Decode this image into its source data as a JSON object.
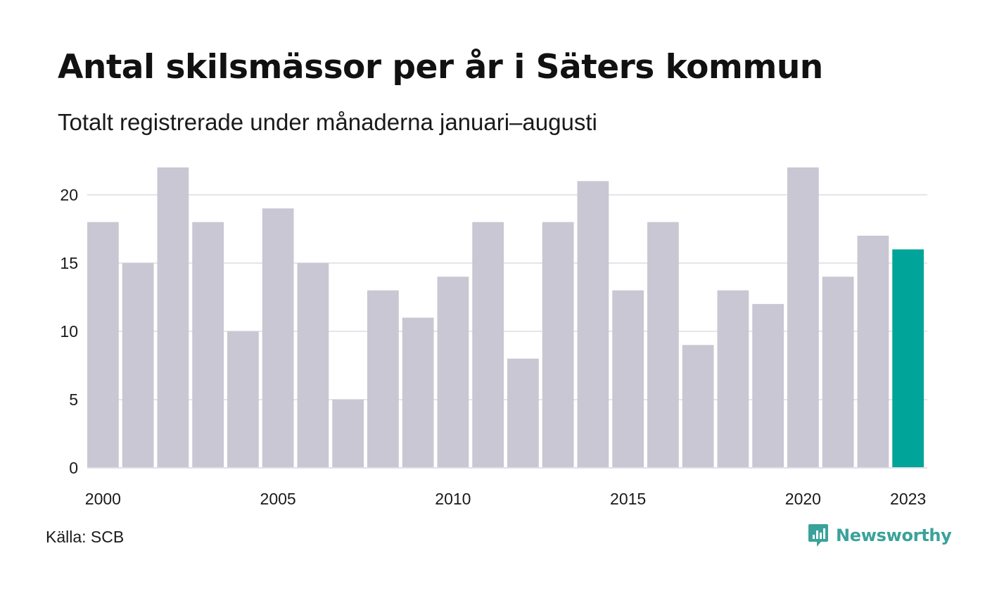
{
  "header": {
    "title": "Antal skilsmässor per år i Säters kommun",
    "subtitle": "Totalt registrerade under månaderna januari–augusti"
  },
  "footer": {
    "source": "Källa: SCB",
    "brand": "Newsworthy"
  },
  "colors": {
    "bar": "#c8c7d3",
    "highlight": "#00a499",
    "grid": "#e5e5ea",
    "brand": "#3aa29a"
  },
  "chart_data": {
    "type": "bar",
    "categories": [
      "2000",
      "2001",
      "2002",
      "2003",
      "2004",
      "2005",
      "2006",
      "2007",
      "2008",
      "2009",
      "2010",
      "2011",
      "2012",
      "2013",
      "2014",
      "2015",
      "2016",
      "2017",
      "2018",
      "2019",
      "2020",
      "2021",
      "2022",
      "2023"
    ],
    "values": [
      18,
      15,
      22,
      18,
      10,
      19,
      15,
      5,
      13,
      11,
      14,
      18,
      8,
      18,
      21,
      13,
      18,
      9,
      13,
      12,
      22,
      14,
      17,
      16
    ],
    "x_tick_labels": [
      "2000",
      "2005",
      "2010",
      "2015",
      "2020",
      "2023"
    ],
    "y_ticks": [
      0,
      5,
      10,
      15,
      20
    ],
    "ylim": [
      0,
      22
    ],
    "highlight_category": "2023",
    "grid": true,
    "legend": "none",
    "title": "Antal skilsmässor per år i Säters kommun",
    "xlabel": "",
    "ylabel": ""
  }
}
